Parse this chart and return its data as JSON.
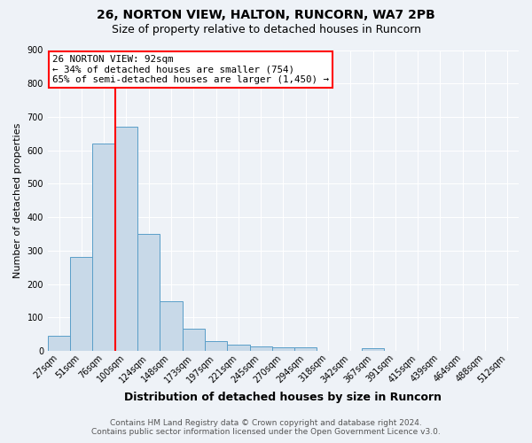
{
  "title1": "26, NORTON VIEW, HALTON, RUNCORN, WA7 2PB",
  "title2": "Size of property relative to detached houses in Runcorn",
  "xlabel": "Distribution of detached houses by size in Runcorn",
  "ylabel": "Number of detached properties",
  "footnote1": "Contains HM Land Registry data © Crown copyright and database right 2024.",
  "footnote2": "Contains public sector information licensed under the Open Government Licence v3.0.",
  "bin_labels": [
    "27sqm",
    "51sqm",
    "76sqm",
    "100sqm",
    "124sqm",
    "148sqm",
    "173sqm",
    "197sqm",
    "221sqm",
    "245sqm",
    "270sqm",
    "294sqm",
    "318sqm",
    "342sqm",
    "367sqm",
    "391sqm",
    "415sqm",
    "439sqm",
    "464sqm",
    "488sqm",
    "512sqm"
  ],
  "bar_heights": [
    45,
    280,
    620,
    670,
    350,
    148,
    65,
    30,
    18,
    12,
    10,
    10,
    0,
    0,
    8,
    0,
    0,
    0,
    0,
    0,
    0
  ],
  "bar_color": "#c8d9e8",
  "bar_edge_color": "#5a9ec8",
  "red_line_bin": 2.5,
  "annotation_line1": "26 NORTON VIEW: 92sqm",
  "annotation_line2": "← 34% of detached houses are smaller (754)",
  "annotation_line3": "65% of semi-detached houses are larger (1,450) →",
  "annotation_box_facecolor": "white",
  "annotation_box_edgecolor": "red",
  "ylim": [
    0,
    900
  ],
  "yticks": [
    0,
    100,
    200,
    300,
    400,
    500,
    600,
    700,
    800,
    900
  ],
  "background_color": "#eef2f7",
  "grid_color": "white",
  "title1_fontsize": 10,
  "title2_fontsize": 9,
  "ylabel_fontsize": 8,
  "xlabel_fontsize": 9,
  "tick_fontsize": 7,
  "footnote_fontsize": 6.5
}
